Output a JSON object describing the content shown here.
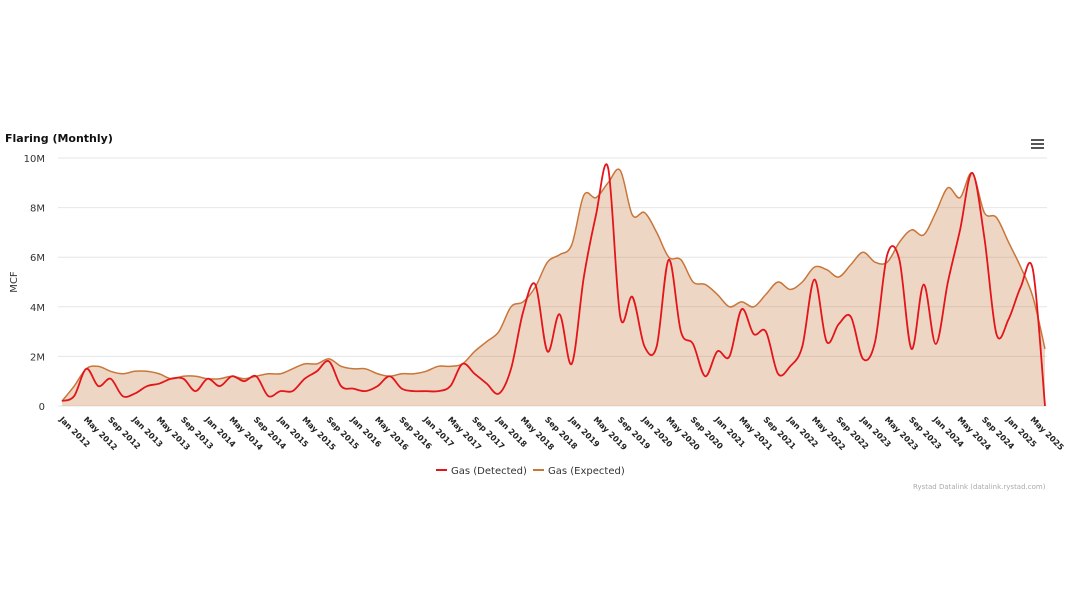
{
  "chart_data": {
    "type": "area-line",
    "title": "Flaring (Monthly)",
    "y_label": "MCF",
    "credit": "Rystad Datalink (datalink.rystad.com)",
    "categories": [
      "Jan 2012",
      null,
      "May 2012",
      null,
      "Sep 2012",
      null,
      "Jan 2013",
      null,
      "May 2013",
      null,
      "Sep 2013",
      null,
      "Jan 2014",
      null,
      "May 2014",
      null,
      "Sep 2014",
      null,
      "Jan 2015",
      null,
      "May 2015",
      null,
      "Sep 2015",
      null,
      "Jan 2016",
      null,
      "May 2016",
      null,
      "Sep 2016",
      null,
      "Jan 2017",
      null,
      "May 2017",
      null,
      "Sep 2017",
      null,
      "Jan 2018",
      null,
      "May 2018",
      null,
      "Sep 2018",
      null,
      "Jan 2019",
      null,
      "May 2019",
      null,
      "Sep 2019",
      null,
      "Jan 2020",
      null,
      "May 2020",
      null,
      "Sep 2020",
      null,
      "Jan 2021",
      null,
      "May 2021",
      null,
      "Sep 2021",
      null,
      "Jan 2022",
      null,
      "May 2022",
      null,
      "Sep 2022",
      null,
      "Jan 2023",
      null,
      "May 2023",
      null,
      "Sep 2023",
      null,
      "Jan 2024",
      null,
      "May 2024",
      null,
      "Sep 2024",
      null,
      "Jan 2025",
      null,
      "May 2025",
      null
    ],
    "series": [
      {
        "name": "Gas (Detected)",
        "color": "#e3151b",
        "values": [
          200000,
          400000,
          1500000,
          800000,
          1100000,
          400000,
          500000,
          800000,
          900000,
          1100000,
          1100000,
          600000,
          1100000,
          800000,
          1200000,
          1000000,
          1200000,
          400000,
          600000,
          600000,
          1100000,
          1400000,
          1800000,
          800000,
          700000,
          600000,
          800000,
          1200000,
          700000,
          600000,
          600000,
          600000,
          800000,
          1700000,
          1300000,
          900000,
          500000,
          1500000,
          3800000,
          4900000,
          2200000,
          3700000,
          1700000,
          5200000,
          7700000,
          9600000,
          3600000,
          4400000,
          2400000,
          2400000,
          5900000,
          3000000,
          2500000,
          1200000,
          2200000,
          2000000,
          3900000,
          2900000,
          3000000,
          1300000,
          1600000,
          2400000,
          5100000,
          2600000,
          3300000,
          3600000,
          1900000,
          2600000,
          6100000,
          5900000,
          2300000,
          4900000,
          2500000,
          5000000,
          7100000,
          9400000,
          6800000,
          2900000,
          3500000,
          4800000,
          5500000,
          0
        ]
      },
      {
        "name": "Gas (Expected)",
        "color": "#c8763a",
        "values": [
          200000,
          800000,
          1500000,
          1600000,
          1400000,
          1300000,
          1400000,
          1400000,
          1300000,
          1100000,
          1200000,
          1200000,
          1100000,
          1100000,
          1200000,
          1100000,
          1200000,
          1300000,
          1300000,
          1500000,
          1700000,
          1700000,
          1900000,
          1600000,
          1500000,
          1500000,
          1300000,
          1200000,
          1300000,
          1300000,
          1400000,
          1600000,
          1600000,
          1700000,
          2200000,
          2600000,
          3000000,
          4000000,
          4200000,
          4800000,
          5800000,
          6100000,
          6500000,
          8500000,
          8400000,
          9000000,
          9500000,
          7700000,
          7800000,
          7000000,
          6000000,
          5900000,
          5000000,
          4900000,
          4500000,
          4000000,
          4200000,
          4000000,
          4500000,
          5000000,
          4700000,
          5000000,
          5600000,
          5500000,
          5200000,
          5700000,
          6200000,
          5800000,
          5800000,
          6600000,
          7100000,
          6900000,
          7800000,
          8800000,
          8400000,
          9400000,
          7800000,
          7600000,
          6600000,
          5600000,
          4400000,
          2300000
        ]
      }
    ],
    "ylim": [
      0,
      10000000
    ],
    "yticks": [
      {
        "value": 0,
        "label": "0"
      },
      {
        "value": 2000000,
        "label": "2M"
      },
      {
        "value": 4000000,
        "label": "4M"
      },
      {
        "value": 6000000,
        "label": "6M"
      },
      {
        "value": 8000000,
        "label": "8M"
      },
      {
        "value": 10000000,
        "label": "10M"
      }
    ],
    "grid": true,
    "legend": "bottom"
  }
}
